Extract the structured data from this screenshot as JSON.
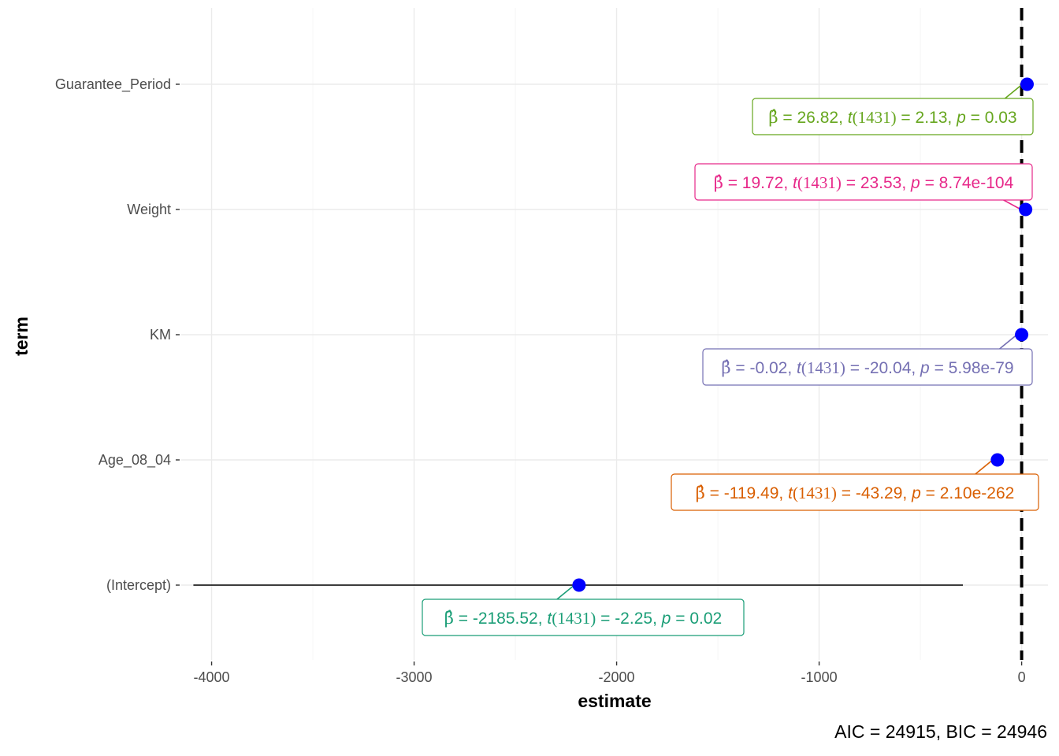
{
  "chart_data": {
    "type": "scatter",
    "xlabel": "estimate",
    "ylabel": "term",
    "xlim": [
      -4150,
      130
    ],
    "x_ticks": [
      -4000,
      -3000,
      -2000,
      -1000,
      0
    ],
    "x_tick_labels": [
      "-4000",
      "-3000",
      "-2000",
      "-1000",
      "0"
    ],
    "reference_line": 0,
    "grid": true,
    "point_color": "#0000FF",
    "terms": [
      {
        "term": "(Intercept)",
        "estimate": -2185.52,
        "ci": [
          -4090,
          -290
        ],
        "beta": "-2185.52",
        "df": "1431",
        "t": "-2.25",
        "p": "0.02",
        "color": "#1B9E77"
      },
      {
        "term": "Age_08_04",
        "estimate": -119.49,
        "ci": [
          -124.9,
          -114.1
        ],
        "beta": "-119.49",
        "df": "1431",
        "t": "-43.29",
        "p": "2.10e-262",
        "color": "#D95F02"
      },
      {
        "term": "KM",
        "estimate": -0.02,
        "ci": [
          -0.022,
          -0.018
        ],
        "beta": "-0.02",
        "df": "1431",
        "t": "-20.04",
        "p": "5.98e-79",
        "color": "#7570B3"
      },
      {
        "term": "Weight",
        "estimate": 19.72,
        "ci": [
          18.1,
          21.4
        ],
        "beta": "19.72",
        "df": "1431",
        "t": "23.53",
        "p": "8.74e-104",
        "color": "#E7298A"
      },
      {
        "term": "Guarantee_Period",
        "estimate": 26.82,
        "ci": [
          2.1,
          51.5
        ],
        "beta": "26.82",
        "df": "1431",
        "t": "2.13",
        "p": "0.03",
        "color": "#66A61E"
      }
    ],
    "caption": {
      "aic": "24915",
      "bic": "24946"
    }
  }
}
